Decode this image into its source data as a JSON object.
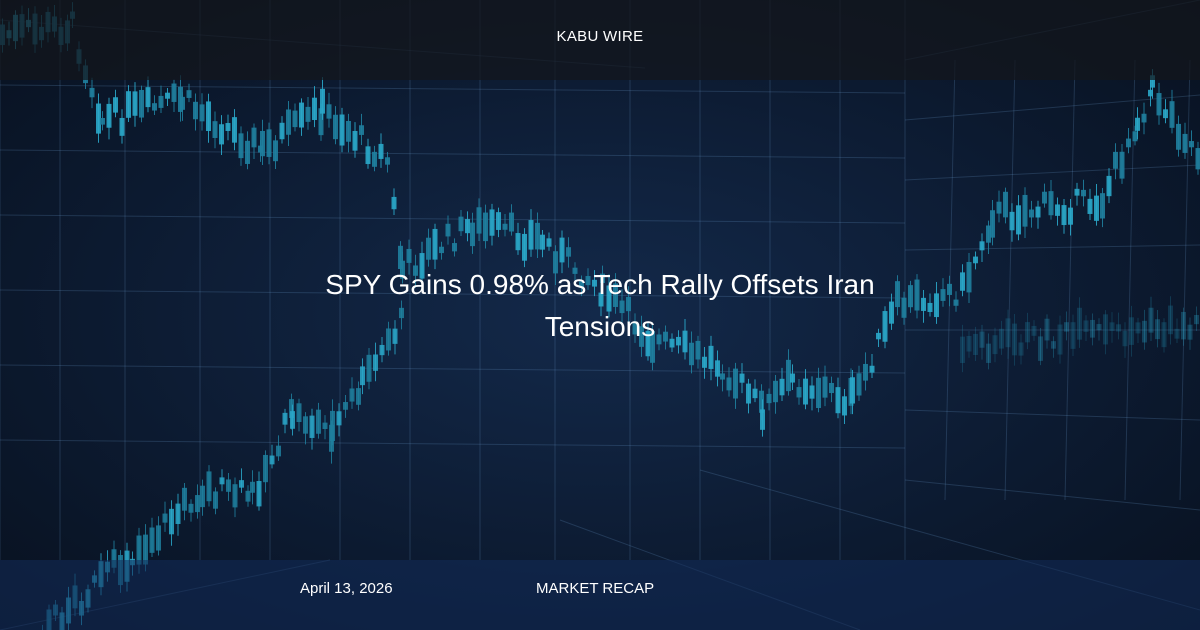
{
  "header": {
    "brand": "KABU WIRE"
  },
  "title": "SPY Gains 0.98% as Tech Rally Offsets Iran Tensions",
  "footer": {
    "date": "April 13, 2026",
    "category": "MARKET RECAP"
  }
}
